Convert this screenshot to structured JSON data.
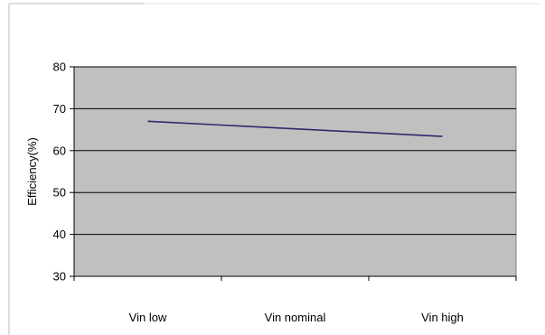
{
  "chart_data": {
    "type": "line",
    "title": "",
    "xlabel": "",
    "ylabel": "Efficiency(%)",
    "categories": [
      "Vin low",
      "Vin nominal",
      "Vin high"
    ],
    "series": [
      {
        "values": [
          67,
          65.2,
          63.4
        ]
      }
    ],
    "ylim": [
      30,
      80
    ],
    "yticks": [
      30,
      40,
      50,
      60,
      70,
      80
    ],
    "grid": true,
    "legend": "none",
    "colors": {
      "plot_background": "#c0c0c0",
      "line": "#2e2a6b",
      "gridline": "#000000"
    }
  }
}
